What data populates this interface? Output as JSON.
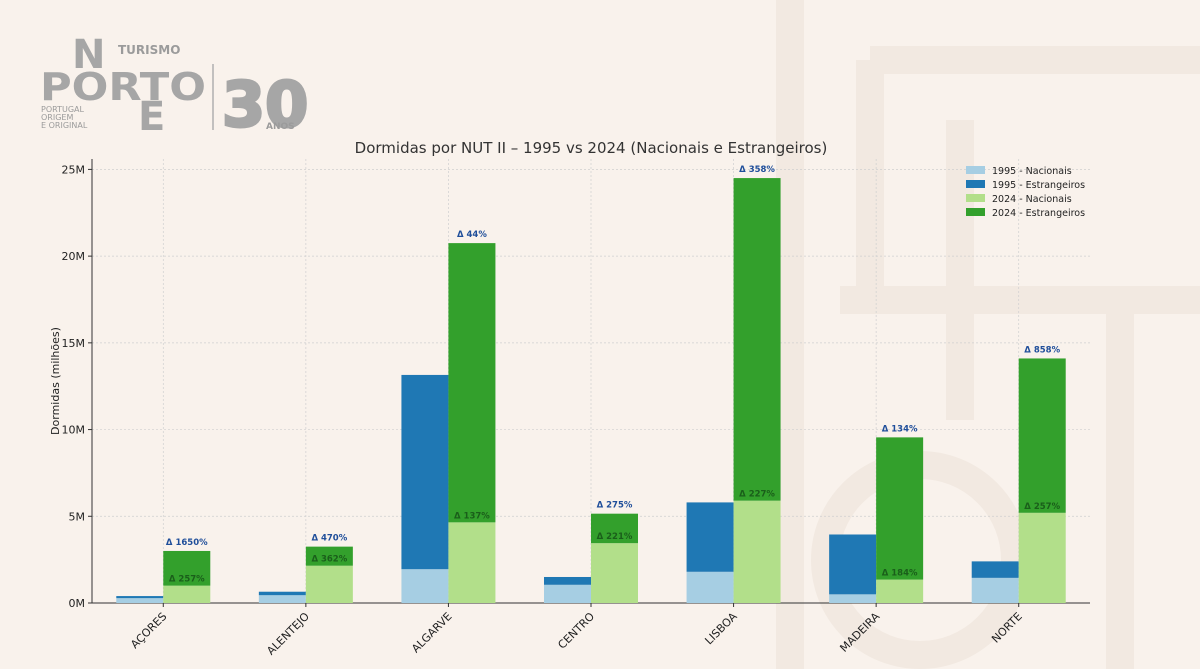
{
  "logo": {
    "turismo": "TURISMO",
    "n": "N",
    "porto": "PORTO",
    "e": "E",
    "tagline_1": "PORTUGAL",
    "tagline_2": "ORIGEM",
    "tagline_3": "E ORIGINAL",
    "anniversary_number": "30",
    "anniversary_label": "ANOS"
  },
  "colors": {
    "background": "#f9f2ec",
    "nac_1995": "#a6cee3",
    "est_1995": "#1f78b4",
    "nac_2024": "#b2df8a",
    "est_2024": "#33a02c",
    "delta_top": "#1f4e9a",
    "delta_nat": "#1a5e1a"
  },
  "chart_data": {
    "type": "bar",
    "stacked": true,
    "grouped": true,
    "title": "Dormidas por NUT II – 1995 vs 2024 (Nacionais e Estrangeiros)",
    "xlabel": "",
    "ylabel": "Dormidas (milhões)",
    "ylim": [
      0,
      25.6
    ],
    "yticks": [
      0,
      5,
      10,
      15,
      20,
      25
    ],
    "ytick_labels": [
      "0M",
      "5M",
      "10M",
      "15M",
      "20M",
      "25M"
    ],
    "grid": true,
    "legend_position": "top-right",
    "categories": [
      "AÇORES",
      "ALENTEJO",
      "ALGARVE",
      "CENTRO",
      "LISBOA",
      "MADEIRA",
      "NORTE"
    ],
    "series": [
      {
        "name": "1995 - Nacionais",
        "group": "1995",
        "values": [
          0.28,
          0.45,
          1.95,
          1.05,
          1.8,
          0.5,
          1.45
        ]
      },
      {
        "name": "1995 - Estrangeiros",
        "group": "1995",
        "values": [
          0.12,
          0.2,
          11.2,
          0.45,
          4.0,
          3.45,
          0.95
        ]
      },
      {
        "name": "2024 - Nacionais",
        "group": "2024",
        "values": [
          1.0,
          2.15,
          4.65,
          3.45,
          5.9,
          1.35,
          5.2
        ]
      },
      {
        "name": "2024 - Estrangeiros",
        "group": "2024",
        "values": [
          2.0,
          1.1,
          16.1,
          1.7,
          18.6,
          8.2,
          8.9
        ]
      }
    ],
    "annotations_total": [
      "Δ 1650%",
      "Δ 470%",
      "Δ 44%",
      "Δ 275%",
      "Δ 358%",
      "Δ 134%",
      "Δ 858%"
    ],
    "annotations_nacionais": [
      "Δ 257%",
      "Δ 362%",
      "Δ 137%",
      "Δ 221%",
      "Δ 227%",
      "Δ 184%",
      "Δ 257%"
    ]
  }
}
